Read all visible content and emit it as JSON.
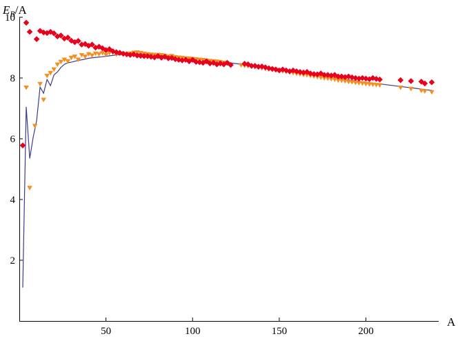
{
  "chart_data": {
    "type": "scatter",
    "ylabel": {
      "main": "E",
      "sub": "B",
      "rest": "/A"
    },
    "xlabel": "A",
    "xlim": [
      0,
      242
    ],
    "ylim": [
      0,
      10
    ],
    "x_ticks": [
      50,
      100,
      150,
      200
    ],
    "y_ticks": [
      2,
      4,
      6,
      8,
      10
    ],
    "grid": false,
    "colors": {
      "red": "#e8001c",
      "orange": "#f58e1e",
      "line": "#3a3a8c"
    },
    "series": [
      {
        "marker": "diamond",
        "color": "#e8001c",
        "points": [
          [
            2,
            5.78
          ],
          [
            4,
            9.82
          ],
          [
            6,
            9.52
          ],
          [
            10,
            9.28
          ],
          [
            12,
            9.55
          ],
          [
            14,
            9.5
          ],
          [
            16,
            9.48
          ],
          [
            18,
            9.52
          ],
          [
            20,
            9.47
          ],
          [
            22,
            9.37
          ],
          [
            24,
            9.4
          ],
          [
            26,
            9.3
          ],
          [
            28,
            9.33
          ],
          [
            30,
            9.23
          ],
          [
            32,
            9.18
          ],
          [
            34,
            9.22
          ],
          [
            36,
            9.1
          ],
          [
            38,
            9.12
          ],
          [
            40,
            9.06
          ],
          [
            42,
            9.1
          ],
          [
            44,
            9.0
          ],
          [
            46,
            9.03
          ],
          [
            48,
            8.98
          ],
          [
            50,
            8.92
          ],
          [
            52,
            8.95
          ],
          [
            54,
            8.88
          ],
          [
            56,
            8.85
          ],
          [
            58,
            8.83
          ],
          [
            60,
            8.8
          ],
          [
            62,
            8.78
          ],
          [
            64,
            8.76
          ],
          [
            66,
            8.78
          ],
          [
            68,
            8.74
          ],
          [
            70,
            8.73
          ],
          [
            72,
            8.72
          ],
          [
            74,
            8.72
          ],
          [
            76,
            8.7
          ],
          [
            78,
            8.68
          ],
          [
            80,
            8.72
          ],
          [
            82,
            8.67
          ],
          [
            84,
            8.7
          ],
          [
            86,
            8.65
          ],
          [
            88,
            8.66
          ],
          [
            90,
            8.62
          ],
          [
            92,
            8.6
          ],
          [
            94,
            8.58
          ],
          [
            96,
            8.6
          ],
          [
            98,
            8.55
          ],
          [
            100,
            8.6
          ],
          [
            102,
            8.53
          ],
          [
            104,
            8.52
          ],
          [
            106,
            8.5
          ],
          [
            108,
            8.55
          ],
          [
            110,
            8.48
          ],
          [
            112,
            8.5
          ],
          [
            114,
            8.45
          ],
          [
            116,
            8.48
          ],
          [
            118,
            8.45
          ],
          [
            120,
            8.5
          ],
          [
            122,
            8.43
          ],
          [
            130,
            8.47
          ],
          [
            132,
            8.45
          ],
          [
            134,
            8.4
          ],
          [
            136,
            8.4
          ],
          [
            138,
            8.37
          ],
          [
            140,
            8.38
          ],
          [
            142,
            8.35
          ],
          [
            144,
            8.32
          ],
          [
            146,
            8.3
          ],
          [
            148,
            8.28
          ],
          [
            150,
            8.25
          ],
          [
            152,
            8.28
          ],
          [
            154,
            8.25
          ],
          [
            156,
            8.22
          ],
          [
            158,
            8.25
          ],
          [
            160,
            8.22
          ],
          [
            162,
            8.2
          ],
          [
            164,
            8.18
          ],
          [
            166,
            8.2
          ],
          [
            168,
            8.15
          ],
          [
            170,
            8.13
          ],
          [
            172,
            8.12
          ],
          [
            174,
            8.15
          ],
          [
            176,
            8.1
          ],
          [
            178,
            8.1
          ],
          [
            180,
            8.08
          ],
          [
            182,
            8.1
          ],
          [
            184,
            8.05
          ],
          [
            186,
            8.05
          ],
          [
            188,
            8.03
          ],
          [
            190,
            8.05
          ],
          [
            192,
            8.02
          ],
          [
            194,
            8.0
          ],
          [
            196,
            7.98
          ],
          [
            198,
            8.0
          ],
          [
            200,
            7.98
          ],
          [
            202,
            7.96
          ],
          [
            204,
            8.0
          ],
          [
            206,
            7.97
          ],
          [
            208,
            7.95
          ],
          [
            220,
            7.93
          ],
          [
            226,
            7.9
          ],
          [
            232,
            7.88
          ],
          [
            234,
            7.82
          ],
          [
            238,
            7.86
          ]
        ]
      },
      {
        "marker": "triangle-down",
        "color": "#f58e1e",
        "points": [
          [
            4,
            7.68
          ],
          [
            6,
            4.38
          ],
          [
            9,
            6.42
          ],
          [
            12,
            7.8
          ],
          [
            14,
            7.28
          ],
          [
            16,
            8.07
          ],
          [
            18,
            8.16
          ],
          [
            20,
            8.28
          ],
          [
            22,
            8.44
          ],
          [
            24,
            8.53
          ],
          [
            26,
            8.6
          ],
          [
            28,
            8.55
          ],
          [
            30,
            8.66
          ],
          [
            32,
            8.7
          ],
          [
            34,
            8.6
          ],
          [
            36,
            8.75
          ],
          [
            38,
            8.7
          ],
          [
            40,
            8.78
          ],
          [
            42,
            8.74
          ],
          [
            44,
            8.8
          ],
          [
            46,
            8.78
          ],
          [
            48,
            8.82
          ],
          [
            50,
            8.76
          ],
          [
            52,
            8.82
          ],
          [
            54,
            8.84
          ],
          [
            56,
            8.77
          ],
          [
            58,
            8.8
          ],
          [
            60,
            8.78
          ],
          [
            62,
            8.78
          ],
          [
            64,
            8.8
          ],
          [
            66,
            8.83
          ],
          [
            68,
            8.84
          ],
          [
            70,
            8.82
          ],
          [
            72,
            8.8
          ],
          [
            74,
            8.78
          ],
          [
            76,
            8.77
          ],
          [
            78,
            8.76
          ],
          [
            80,
            8.76
          ],
          [
            82,
            8.75
          ],
          [
            84,
            8.73
          ],
          [
            86,
            8.7
          ],
          [
            88,
            8.72
          ],
          [
            90,
            8.68
          ],
          [
            92,
            8.67
          ],
          [
            94,
            8.66
          ],
          [
            96,
            8.64
          ],
          [
            98,
            8.64
          ],
          [
            100,
            8.62
          ],
          [
            102,
            8.61
          ],
          [
            104,
            8.6
          ],
          [
            106,
            8.59
          ],
          [
            108,
            8.57
          ],
          [
            110,
            8.56
          ],
          [
            112,
            8.55
          ],
          [
            114,
            8.54
          ],
          [
            116,
            8.52
          ],
          [
            118,
            8.5
          ],
          [
            120,
            8.48
          ],
          [
            128,
            8.42
          ],
          [
            130,
            8.4
          ],
          [
            132,
            8.39
          ],
          [
            134,
            8.38
          ],
          [
            136,
            8.36
          ],
          [
            138,
            8.34
          ],
          [
            140,
            8.32
          ],
          [
            142,
            8.3
          ],
          [
            144,
            8.29
          ],
          [
            146,
            8.28
          ],
          [
            148,
            8.26
          ],
          [
            150,
            8.24
          ],
          [
            152,
            8.22
          ],
          [
            154,
            8.2
          ],
          [
            156,
            8.18
          ],
          [
            158,
            8.16
          ],
          [
            160,
            8.14
          ],
          [
            162,
            8.12
          ],
          [
            164,
            8.1
          ],
          [
            166,
            8.09
          ],
          [
            168,
            8.07
          ],
          [
            170,
            8.05
          ],
          [
            172,
            8.03
          ],
          [
            174,
            8.01
          ],
          [
            176,
            7.99
          ],
          [
            178,
            7.98
          ],
          [
            180,
            7.96
          ],
          [
            182,
            7.94
          ],
          [
            184,
            7.92
          ],
          [
            186,
            7.91
          ],
          [
            188,
            7.89
          ],
          [
            190,
            7.87
          ],
          [
            192,
            7.86
          ],
          [
            194,
            7.84
          ],
          [
            196,
            7.83
          ],
          [
            198,
            7.82
          ],
          [
            200,
            7.8
          ],
          [
            202,
            7.79
          ],
          [
            204,
            7.78
          ],
          [
            206,
            7.77
          ],
          [
            208,
            7.76
          ],
          [
            220,
            7.68
          ],
          [
            226,
            7.64
          ],
          [
            232,
            7.58
          ],
          [
            234,
            7.56
          ],
          [
            238,
            7.53
          ]
        ]
      },
      {
        "marker": "line",
        "color": "#3a3a8c",
        "points": [
          [
            2,
            1.1
          ],
          [
            4,
            7.05
          ],
          [
            6,
            5.35
          ],
          [
            8,
            6.05
          ],
          [
            10,
            6.6
          ],
          [
            12,
            7.7
          ],
          [
            14,
            7.5
          ],
          [
            16,
            7.95
          ],
          [
            18,
            7.75
          ],
          [
            20,
            8.1
          ],
          [
            22,
            8.2
          ],
          [
            24,
            8.35
          ],
          [
            26,
            8.45
          ],
          [
            28,
            8.5
          ],
          [
            30,
            8.52
          ],
          [
            32,
            8.55
          ],
          [
            34,
            8.58
          ],
          [
            36,
            8.6
          ],
          [
            38,
            8.62
          ],
          [
            40,
            8.65
          ],
          [
            44,
            8.68
          ],
          [
            48,
            8.7
          ],
          [
            52,
            8.73
          ],
          [
            56,
            8.76
          ],
          [
            60,
            8.78
          ],
          [
            66,
            8.8
          ],
          [
            72,
            8.79
          ],
          [
            80,
            8.76
          ],
          [
            90,
            8.7
          ],
          [
            100,
            8.64
          ],
          [
            110,
            8.58
          ],
          [
            120,
            8.51
          ],
          [
            130,
            8.44
          ],
          [
            140,
            8.37
          ],
          [
            150,
            8.29
          ],
          [
            160,
            8.21
          ],
          [
            170,
            8.12
          ],
          [
            180,
            8.03
          ],
          [
            190,
            7.94
          ],
          [
            200,
            7.86
          ],
          [
            210,
            7.79
          ],
          [
            220,
            7.72
          ],
          [
            230,
            7.65
          ],
          [
            238,
            7.59
          ]
        ]
      }
    ]
  }
}
